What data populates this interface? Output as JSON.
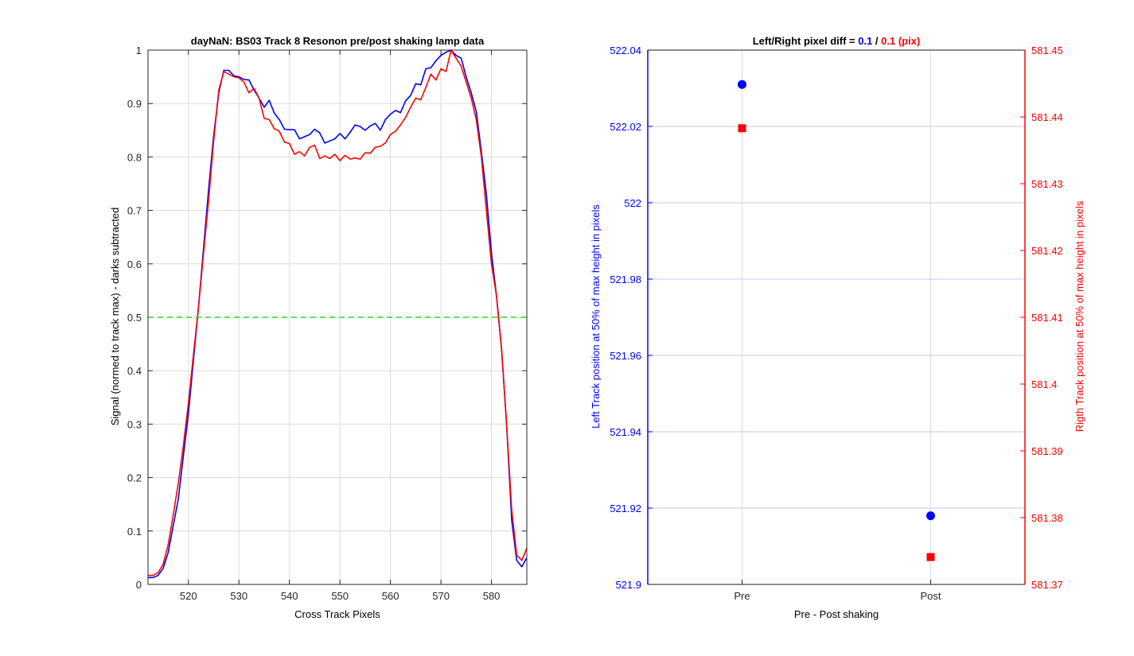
{
  "chart_data": [
    {
      "type": "line",
      "title": "dayNaN: BS03  Track 8 Resonon pre/post shaking lamp data",
      "xlabel": "Cross Track Pixels",
      "ylabel": "Signal (normed to track max) - darks subtracted",
      "xlim": [
        512,
        587
      ],
      "ylim": [
        0,
        1
      ],
      "xticks": [
        520,
        530,
        540,
        550,
        560,
        570,
        580
      ],
      "yticks": [
        0,
        0.1,
        0.2,
        0.3,
        0.4,
        0.5,
        0.6,
        0.7,
        0.8,
        0.9,
        1
      ],
      "grid": true,
      "colors": {
        "pre": "#0000ff",
        "post": "#ff0000",
        "threshold": "#22dd22"
      },
      "reference_line": {
        "y": 0.5,
        "style": "dashed"
      },
      "x": [
        512,
        513,
        514,
        515,
        516,
        517,
        518,
        519,
        520,
        521,
        522,
        523,
        524,
        525,
        526,
        527,
        528,
        529,
        530,
        531,
        532,
        533,
        534,
        535,
        536,
        537,
        538,
        539,
        540,
        541,
        542,
        543,
        544,
        545,
        546,
        547,
        548,
        549,
        550,
        551,
        552,
        553,
        554,
        555,
        556,
        557,
        558,
        559,
        560,
        561,
        562,
        563,
        564,
        565,
        566,
        567,
        568,
        569,
        570,
        571,
        572,
        573,
        574,
        575,
        576,
        577,
        578,
        579,
        580,
        581,
        582,
        583,
        584,
        585,
        586,
        587
      ],
      "series": [
        {
          "values": [
            0.013,
            0.013,
            0.017,
            0.03,
            0.06,
            0.11,
            0.16,
            0.24,
            0.32,
            0.42,
            0.52,
            0.63,
            0.74,
            0.84,
            0.92,
            0.962,
            0.962,
            0.952,
            0.95,
            0.945,
            0.944,
            0.925,
            0.91,
            0.893,
            0.906,
            0.882,
            0.87,
            0.852,
            0.851,
            0.851,
            0.834,
            0.838,
            0.842,
            0.852,
            0.845,
            0.826,
            0.83,
            0.834,
            0.844,
            0.834,
            0.846,
            0.86,
            0.857,
            0.85,
            0.858,
            0.863,
            0.85,
            0.87,
            0.88,
            0.887,
            0.883,
            0.905,
            0.915,
            0.937,
            0.935,
            0.965,
            0.967,
            0.98,
            0.99,
            0.996,
            1.0,
            0.99,
            0.985,
            0.95,
            0.92,
            0.885,
            0.81,
            0.73,
            0.62,
            0.54,
            0.44,
            0.3,
            0.12,
            0.045,
            0.033,
            0.05
          ]
        },
        {
          "values": [
            0.017,
            0.017,
            0.022,
            0.038,
            0.075,
            0.13,
            0.19,
            0.26,
            0.34,
            0.43,
            0.52,
            0.62,
            0.72,
            0.83,
            0.925,
            0.96,
            0.955,
            0.95,
            0.948,
            0.94,
            0.92,
            0.928,
            0.91,
            0.872,
            0.87,
            0.853,
            0.848,
            0.828,
            0.825,
            0.805,
            0.81,
            0.802,
            0.818,
            0.822,
            0.797,
            0.802,
            0.797,
            0.805,
            0.793,
            0.803,
            0.796,
            0.798,
            0.796,
            0.808,
            0.807,
            0.818,
            0.82,
            0.826,
            0.842,
            0.848,
            0.86,
            0.874,
            0.893,
            0.91,
            0.907,
            0.93,
            0.955,
            0.944,
            0.965,
            0.96,
            1.0,
            0.985,
            0.97,
            0.94,
            0.91,
            0.87,
            0.8,
            0.7,
            0.6,
            0.54,
            0.44,
            0.3,
            0.14,
            0.055,
            0.045,
            0.068
          ]
        }
      ]
    },
    {
      "type": "scatter",
      "title_parts": [
        "Left/Right pixel diff = ",
        "0.1",
        " / ",
        "0.1",
        " (pix)"
      ],
      "xlabel": "Pre - Post shaking",
      "ylabel_left": "Left Track position at 50% of max height in pixels",
      "ylabel_right": "Rigth Track position at 50% of max height in pixels",
      "categories": [
        "Pre",
        "Post"
      ],
      "ylim_left": [
        521.9,
        522.04
      ],
      "yticks_left": [
        "521.9",
        "521.92",
        "521.94",
        "521.96",
        "521.98",
        "522",
        "522.02",
        "522.04"
      ],
      "ylim_right": [
        581.37,
        581.45
      ],
      "yticks_right": [
        "581.37",
        "581.38",
        "581.39",
        "581.4",
        "581.41",
        "581.42",
        "581.43",
        "581.44",
        "581.45"
      ],
      "grid": true,
      "colors": {
        "left": "#0000ff",
        "right": "#ff0000"
      },
      "left_series": {
        "marker": "circle",
        "values": [
          522.031,
          521.918
        ]
      },
      "right_series": {
        "marker": "square",
        "values": [
          581.4383,
          581.3741
        ]
      }
    }
  ]
}
